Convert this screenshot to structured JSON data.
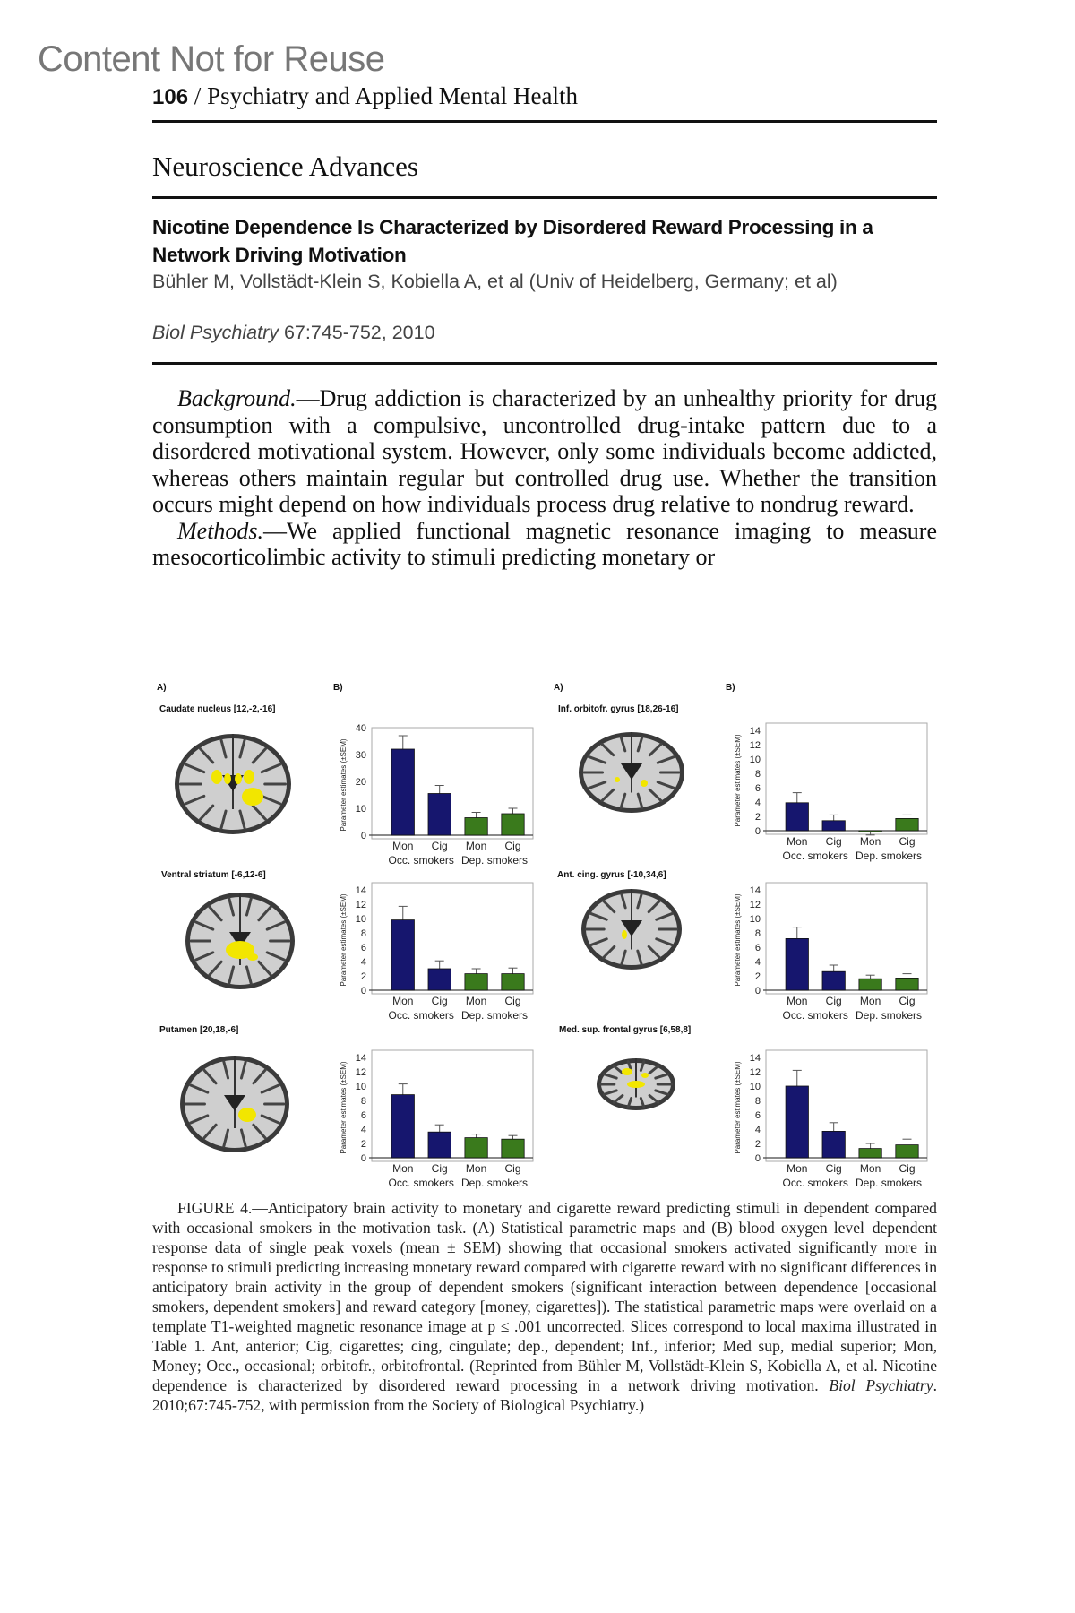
{
  "watermark": "Content Not for Reuse",
  "running_head": {
    "page_number": "106",
    "separator": " / ",
    "journal": "Psychiatry and Applied Mental Health"
  },
  "section_title": "Neuroscience Advances",
  "article": {
    "title": "Nicotine Dependence Is Characterized by Disordered Reward Processing in a Network Driving Motivation",
    "authors": "Bühler M, Vollstädt-Klein S, Kobiella A, et al (Univ of Heidelberg, Germany; et al)",
    "journal_name": "Biol Psychiatry",
    "citation": " 67:745-752, 2010"
  },
  "body": {
    "p1_head": "Background.",
    "p1_text": "—Drug addiction is characterized by an unhealthy priority for drug consumption with a compulsive, uncontrolled drug-intake pattern due to a disordered motivational system. However, only some individuals become addicted, whereas others maintain regular but controlled drug use. Whether the transition occurs might depend on how individuals process drug relative to nondrug reward.",
    "p2_head": "Methods.",
    "p2_text": "—We applied functional magnetic resonance imaging to measure mesocorticolimbic activity to stimuli predicting monetary or"
  },
  "figure": {
    "panel_a_label": "A)",
    "panel_b_label": "B)",
    "colors": {
      "occasional": "#16166e",
      "dependent": "#3a7a1c",
      "activation": "#f2e600"
    },
    "caption_head": "FIGURE 4.",
    "caption_text": "—Anticipatory brain activity to monetary and cigarette reward predicting stimuli in dependent compared with occasional smokers in the motivation task. (A) Statistical parametric maps and (B) blood oxygen level–dependent response data of single peak voxels (mean ± SEM) showing that occasional smokers activated significantly more in response to stimuli predicting increasing monetary reward compared with cigarette reward with no significant differences in anticipatory brain activity in the group of dependent smokers (significant interaction between dependence [occasional smokers, dependent smokers] and reward category [money, cigarettes]). The statistical parametric maps were overlaid on a template T1-weighted magnetic resonance image at p ≤ .001 uncorrected. Slices correspond to local maxima illustrated in Table 1. Ant, anterior; Cig, cigarettes; cing, cingulate; dep., dependent; Inf., inferior; Med sup, medial superior; Mon, Money; Occ., occasional; orbitofr., orbitofrontal. (Reprinted from Bühler M, Vollstädt-Klein S, Kobiella A, et al. Nicotine dependence is characterized by disordered reward processing in a network driving motivation. ",
    "caption_journal": "Biol Psychiatry",
    "caption_tail": ". 2010;67:745-752, with permission from the Society of Biological Psychiatry.)"
  },
  "chart_data": [
    {
      "type": "bar",
      "region": "Caudate nucleus [12,-2,-16]",
      "ylabel": "Parameter estimates (±SEM)",
      "categories": [
        "Mon",
        "Cig",
        "Mon",
        "Cig"
      ],
      "groups": [
        "Occ. smokers",
        "Dep. smokers"
      ],
      "values": [
        32,
        15.5,
        6.5,
        8
      ],
      "error_upper": [
        37,
        18.5,
        8.5,
        10
      ],
      "ylim": [
        0,
        40
      ],
      "yticks": [
        0,
        10,
        20,
        30,
        40
      ]
    },
    {
      "type": "bar",
      "region": "Ventral striatum [-6,12-6]",
      "ylabel": "Parameter estimates (±SEM)",
      "categories": [
        "Mon",
        "Cig",
        "Mon",
        "Cig"
      ],
      "groups": [
        "Occ. smokers",
        "Dep. smokers"
      ],
      "values": [
        9.8,
        3,
        2.3,
        2.3
      ],
      "error_upper": [
        11.7,
        4.1,
        3,
        3.1
      ],
      "ylim": [
        0,
        15
      ],
      "yticks": [
        0,
        2,
        4,
        6,
        8,
        10,
        12,
        14
      ]
    },
    {
      "type": "bar",
      "region": "Putamen [20,18,-6]",
      "ylabel": "Parameter estimates (±SEM)",
      "categories": [
        "Mon",
        "Cig",
        "Mon",
        "Cig"
      ],
      "groups": [
        "Occ. smokers",
        "Dep. smokers"
      ],
      "values": [
        8.8,
        3.6,
        2.8,
        2.6
      ],
      "error_upper": [
        10.3,
        4.6,
        3.3,
        3.1
      ],
      "ylim": [
        0,
        15
      ],
      "yticks": [
        0,
        2,
        4,
        6,
        8,
        10,
        12,
        14
      ]
    },
    {
      "type": "bar",
      "region": "Inf. orbitofr. gyrus [18,26-16]",
      "ylabel": "Parameter estimates (±SEM)",
      "categories": [
        "Mon",
        "Cig",
        "Mon",
        "Cig"
      ],
      "groups": [
        "Occ. smokers",
        "Dep. smokers"
      ],
      "values": [
        3.9,
        1.4,
        -0.2,
        1.7
      ],
      "error_upper": [
        5.3,
        2.2,
        -0.6,
        2.2
      ],
      "ylim": [
        0,
        15
      ],
      "yticks": [
        0,
        2,
        4,
        6,
        8,
        10,
        12,
        14
      ]
    },
    {
      "type": "bar",
      "region": "Ant. cing. gyrus [-10,34,6]",
      "ylabel": "Parameter estimates (±SEM)",
      "categories": [
        "Mon",
        "Cig",
        "Mon",
        "Cig"
      ],
      "groups": [
        "Occ. smokers",
        "Dep. smokers"
      ],
      "values": [
        7.2,
        2.6,
        1.6,
        1.7
      ],
      "error_upper": [
        8.8,
        3.5,
        2.1,
        2.3
      ],
      "ylim": [
        0,
        15
      ],
      "yticks": [
        0,
        2,
        4,
        6,
        8,
        10,
        12,
        14
      ]
    },
    {
      "type": "bar",
      "region": "Med. sup. frontal gyrus [6,58,8]",
      "ylabel": "Parameter estimates (±SEM)",
      "categories": [
        "Mon",
        "Cig",
        "Mon",
        "Cig"
      ],
      "groups": [
        "Occ. smokers",
        "Dep. smokers"
      ],
      "values": [
        10,
        3.7,
        1.3,
        1.8
      ],
      "error_upper": [
        12.2,
        4.9,
        2,
        2.6
      ],
      "ylim": [
        0,
        15
      ],
      "yticks": [
        0,
        2,
        4,
        6,
        8,
        10,
        12,
        14
      ]
    }
  ]
}
